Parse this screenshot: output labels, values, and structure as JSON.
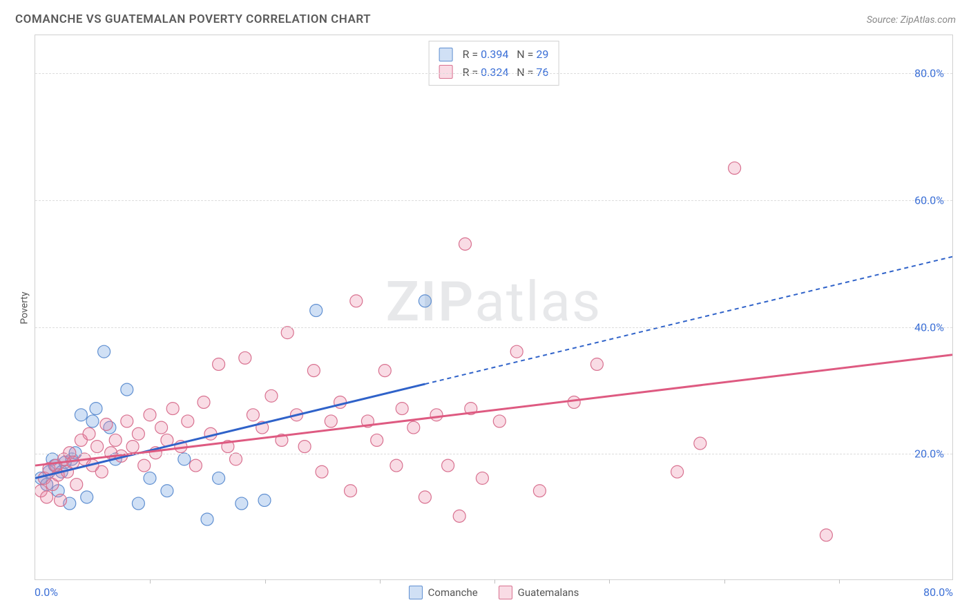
{
  "header": {
    "title": "COMANCHE VS GUATEMALAN POVERTY CORRELATION CHART",
    "source": "Source: ZipAtlas.com"
  },
  "watermark": {
    "bold": "ZIP",
    "rest": "atlas"
  },
  "chart": {
    "type": "scatter",
    "ylabel": "Poverty",
    "xlim": [
      0,
      80
    ],
    "ylim": [
      0,
      86
    ],
    "xtick_positions": [
      0,
      10,
      20,
      30,
      40,
      50,
      60,
      70,
      80
    ],
    "xaxis_label_left": "0.0%",
    "xaxis_label_right": "80.0%",
    "gridlines": [
      {
        "y": 20,
        "label": "20.0%"
      },
      {
        "y": 40,
        "label": "40.0%"
      },
      {
        "y": 60,
        "label": "60.0%"
      },
      {
        "y": 80,
        "label": "80.0%"
      }
    ],
    "background_color": "#ffffff",
    "grid_color": "#dcdcdc",
    "axis_label_color": "#3b6fd6",
    "marker_radius": 9,
    "series": [
      {
        "name": "Comanche",
        "fill": "rgba(120,165,225,0.35)",
        "stroke": "#5f8fd1",
        "trend_stroke": "#2f62c9",
        "R": "0.394",
        "N": "29",
        "points": [
          [
            0.5,
            16
          ],
          [
            1,
            15
          ],
          [
            1.2,
            17
          ],
          [
            1.5,
            19
          ],
          [
            1.7,
            18
          ],
          [
            2,
            14
          ],
          [
            2.3,
            17
          ],
          [
            2.6,
            18.5
          ],
          [
            3,
            12
          ],
          [
            3.2,
            19
          ],
          [
            3.5,
            20
          ],
          [
            4,
            26
          ],
          [
            4.5,
            13
          ],
          [
            5,
            25
          ],
          [
            5.3,
            27
          ],
          [
            6,
            36
          ],
          [
            6.5,
            24
          ],
          [
            7,
            19
          ],
          [
            8,
            30
          ],
          [
            9,
            12
          ],
          [
            10,
            16
          ],
          [
            11.5,
            14
          ],
          [
            13,
            19
          ],
          [
            15,
            9.5
          ],
          [
            16,
            16
          ],
          [
            18,
            12
          ],
          [
            20,
            12.5
          ],
          [
            24.5,
            42.5
          ],
          [
            34,
            44
          ]
        ],
        "trend": {
          "x1": 0,
          "y1": 16,
          "x2": 34,
          "y2": 34,
          "ext_x2": 80,
          "ext_y2": 51,
          "dashed_after": 34
        }
      },
      {
        "name": "Guatemalans",
        "fill": "rgba(235,130,160,0.28)",
        "stroke": "#d8708f",
        "trend_stroke": "#de5a81",
        "R": "0.324",
        "N": "76",
        "points": [
          [
            0.5,
            14
          ],
          [
            0.8,
            16
          ],
          [
            1,
            13
          ],
          [
            1.2,
            17.5
          ],
          [
            1.5,
            15
          ],
          [
            1.8,
            18
          ],
          [
            2,
            16.5
          ],
          [
            2.2,
            12.5
          ],
          [
            2.5,
            19
          ],
          [
            2.8,
            17
          ],
          [
            3,
            20
          ],
          [
            3.3,
            18.5
          ],
          [
            3.6,
            15
          ],
          [
            4,
            22
          ],
          [
            4.3,
            19
          ],
          [
            4.7,
            23
          ],
          [
            5,
            18
          ],
          [
            5.4,
            21
          ],
          [
            5.8,
            17
          ],
          [
            6.2,
            24.5
          ],
          [
            6.6,
            20
          ],
          [
            7,
            22
          ],
          [
            7.5,
            19.5
          ],
          [
            8,
            25
          ],
          [
            8.5,
            21
          ],
          [
            9,
            23
          ],
          [
            9.5,
            18
          ],
          [
            10,
            26
          ],
          [
            10.5,
            20
          ],
          [
            11,
            24
          ],
          [
            11.5,
            22
          ],
          [
            12,
            27
          ],
          [
            12.7,
            21
          ],
          [
            13.3,
            25
          ],
          [
            14,
            18
          ],
          [
            14.7,
            28
          ],
          [
            15.3,
            23
          ],
          [
            16,
            34
          ],
          [
            16.8,
            21
          ],
          [
            17.5,
            19
          ],
          [
            18.3,
            35
          ],
          [
            19,
            26
          ],
          [
            19.8,
            24
          ],
          [
            20.6,
            29
          ],
          [
            21.5,
            22
          ],
          [
            22,
            39
          ],
          [
            22.8,
            26
          ],
          [
            23.5,
            21
          ],
          [
            24.3,
            33
          ],
          [
            25,
            17
          ],
          [
            25.8,
            25
          ],
          [
            26.6,
            28
          ],
          [
            27.5,
            14
          ],
          [
            28,
            44
          ],
          [
            29,
            25
          ],
          [
            29.8,
            22
          ],
          [
            30.5,
            33
          ],
          [
            31.5,
            18
          ],
          [
            32,
            27
          ],
          [
            33,
            24
          ],
          [
            34,
            13
          ],
          [
            35,
            26
          ],
          [
            36,
            18
          ],
          [
            37,
            10
          ],
          [
            37.5,
            53
          ],
          [
            38,
            27
          ],
          [
            39,
            16
          ],
          [
            40.5,
            25
          ],
          [
            42,
            36
          ],
          [
            44,
            14
          ],
          [
            47,
            28
          ],
          [
            49,
            34
          ],
          [
            56,
            17
          ],
          [
            58,
            21.5
          ],
          [
            61,
            65
          ],
          [
            69,
            7
          ]
        ],
        "trend": {
          "x1": 0,
          "y1": 18,
          "x2": 80,
          "y2": 35.5,
          "dashed_after": 80
        }
      }
    ]
  },
  "bottom_legend": [
    {
      "label": "Comanche",
      "fill": "rgba(120,165,225,0.35)",
      "stroke": "#5f8fd1"
    },
    {
      "label": "Guatemalans",
      "fill": "rgba(235,130,160,0.28)",
      "stroke": "#d8708f"
    }
  ]
}
